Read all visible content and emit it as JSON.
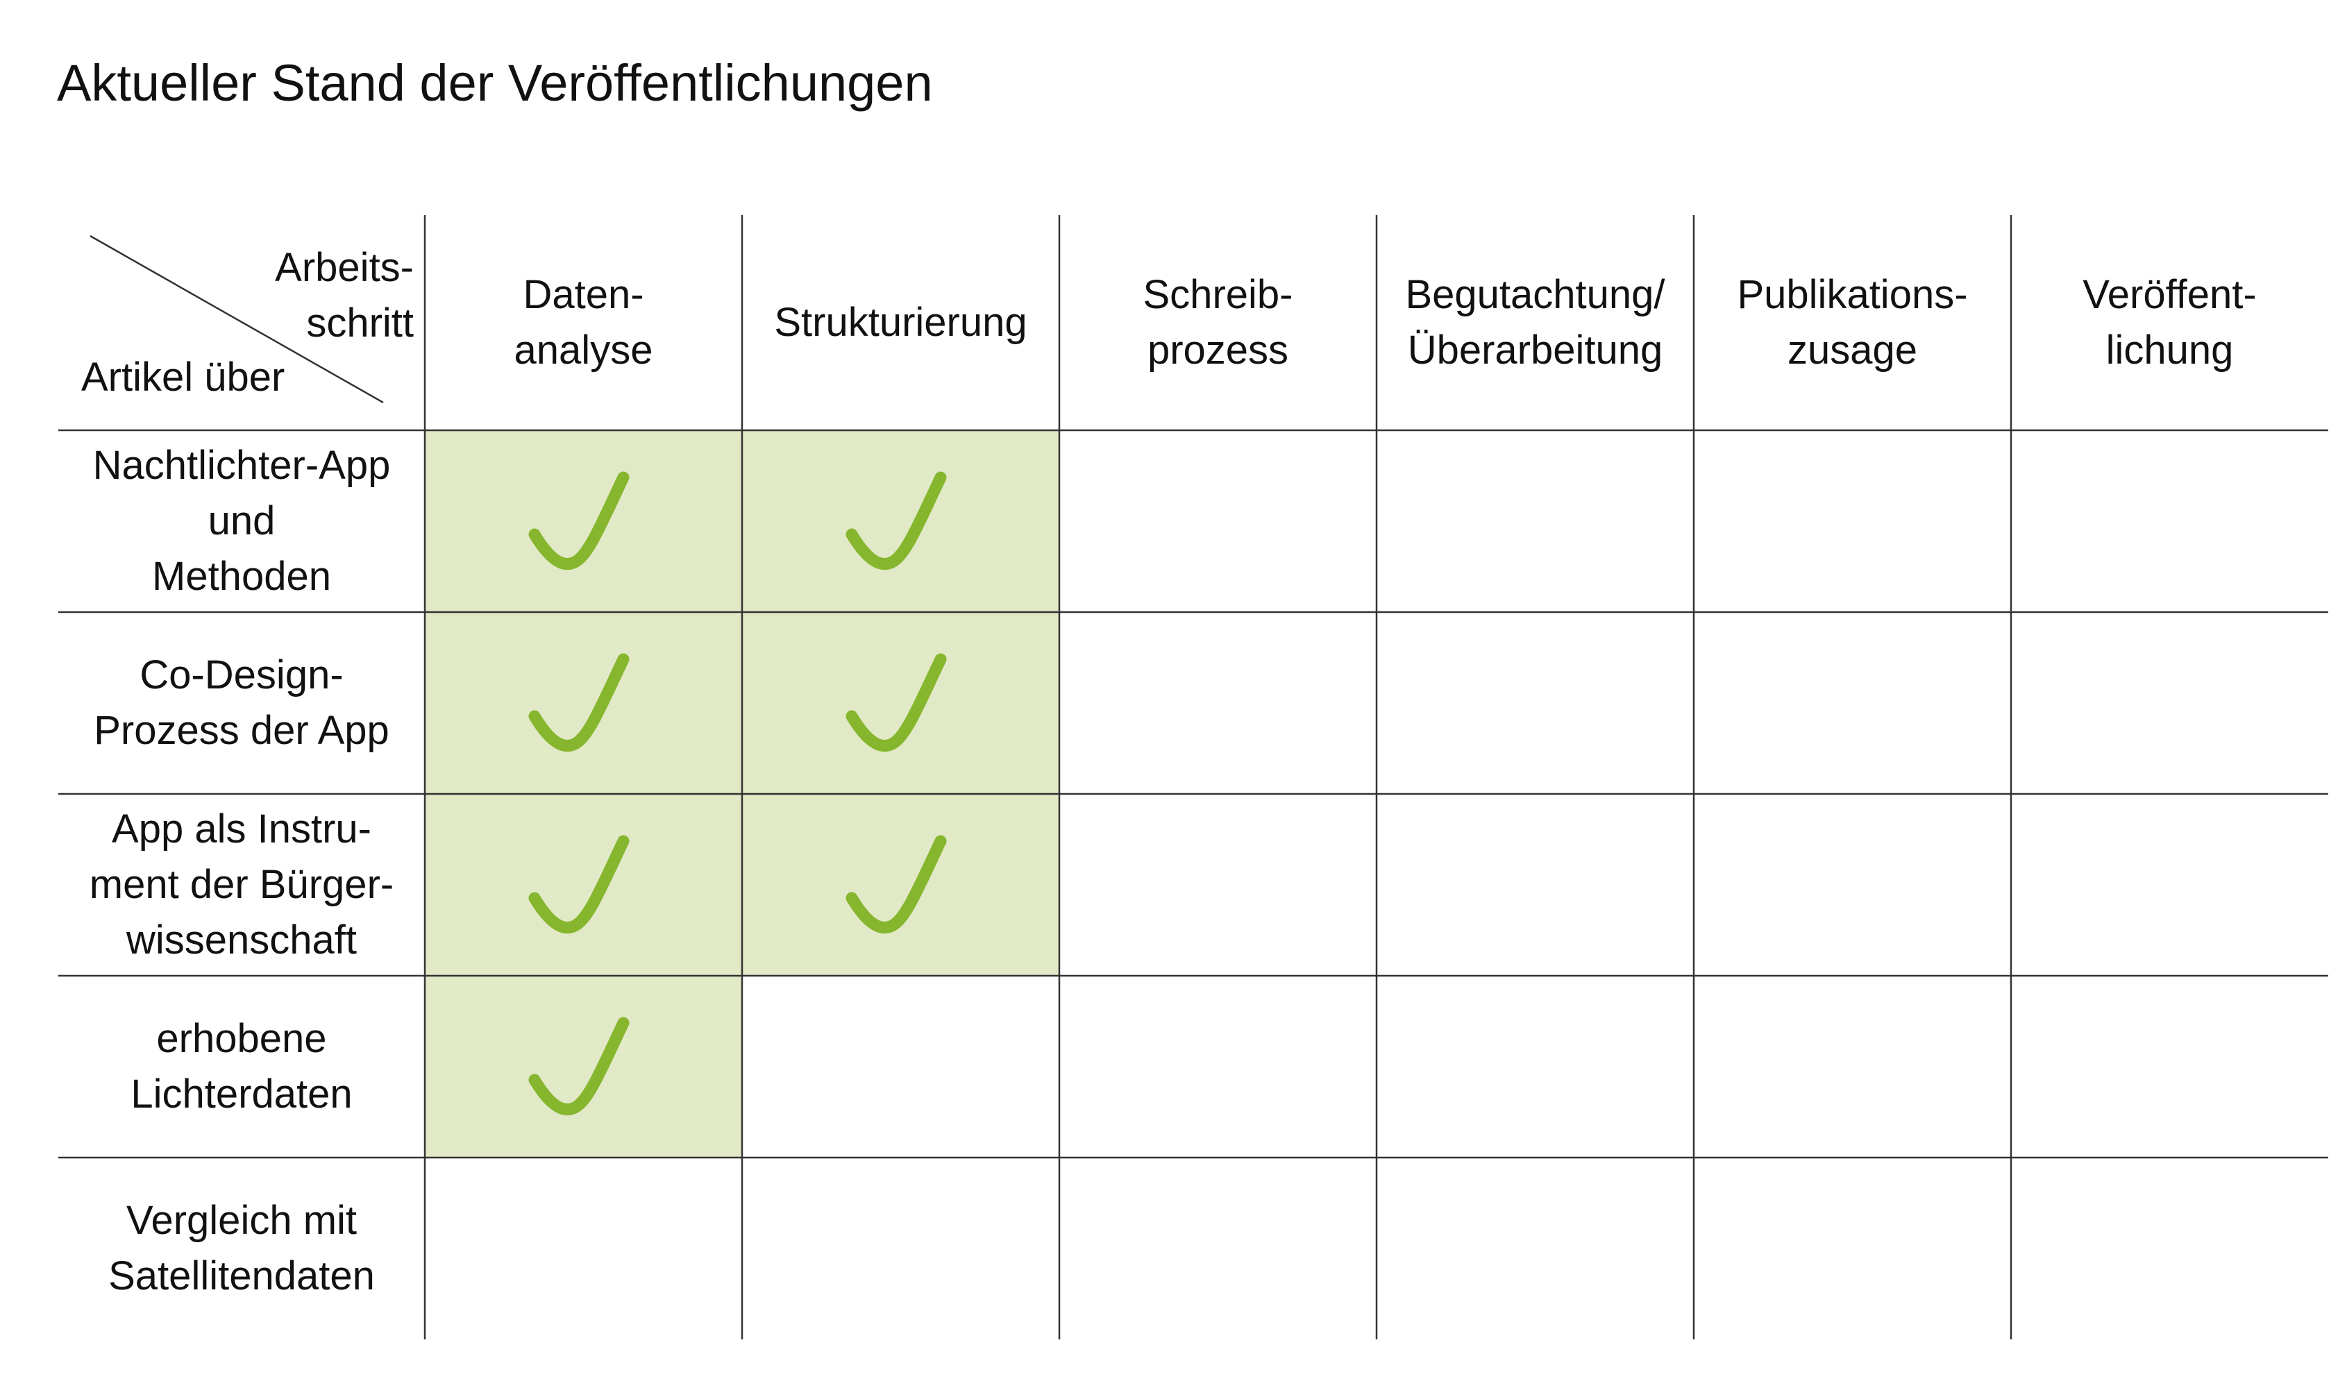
{
  "title": "Aktueller Stand der Veröffentlichungen",
  "corner": {
    "columns_label": "Arbeits-\nschritt",
    "rows_label": "Artikel über"
  },
  "columns": [
    {
      "label": "Daten-\nanalyse"
    },
    {
      "label": "Strukturierung"
    },
    {
      "label": "Schreib-\nprozess"
    },
    {
      "label": "Begutachtung/\nÜberarbeitung"
    },
    {
      "label": "Publikations-\nzusage"
    },
    {
      "label": "Veröffent-\nlichung"
    }
  ],
  "rows": [
    {
      "label": "Nachtlichter-App\nund\nMethoden",
      "done": [
        true,
        true,
        false,
        false,
        false,
        false
      ]
    },
    {
      "label": "Co-Design-\nProzess der App",
      "done": [
        true,
        true,
        false,
        false,
        false,
        false
      ]
    },
    {
      "label": "App als Instru-\nment der Bürger-\nwissenschaft",
      "done": [
        true,
        true,
        false,
        false,
        false,
        false
      ]
    },
    {
      "label": "erhobene\nLichterdaten",
      "done": [
        true,
        false,
        false,
        false,
        false,
        false
      ]
    },
    {
      "label": "Vergleich mit\nSatellitendaten",
      "done": [
        false,
        false,
        false,
        false,
        false,
        false
      ]
    }
  ],
  "colors": {
    "done_fill": "#e1e9c6",
    "check_stroke": "#86b62d",
    "grid_line": "#333333"
  },
  "icons": {
    "check": "check-mark-icon"
  }
}
